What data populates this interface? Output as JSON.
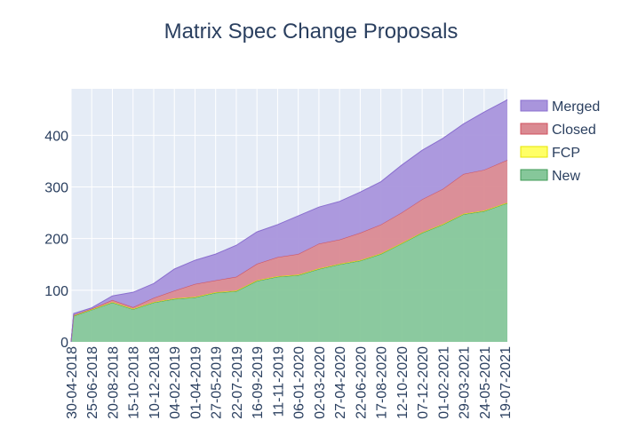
{
  "chart_data": {
    "type": "area",
    "stacked": true,
    "title": "Matrix Spec Change Proposals",
    "xlabel": "",
    "ylabel": "",
    "x": [
      "30-04-2018",
      "07-05-2018",
      "25-06-2018",
      "20-08-2018",
      "15-10-2018",
      "10-12-2018",
      "04-02-2019",
      "01-04-2019",
      "27-05-2019",
      "22-07-2019",
      "16-09-2019",
      "11-11-2019",
      "06-01-2020",
      "02-03-2020",
      "27-04-2020",
      "22-06-2020",
      "17-08-2020",
      "12-10-2020",
      "07-12-2020",
      "01-02-2021",
      "29-03-2021",
      "24-05-2021",
      "19-07-2021",
      "26-07-2021"
    ],
    "series": [
      {
        "name": "New",
        "fill": "#86c79a",
        "line": "#3f9a55",
        "values": [
          0,
          50,
          62,
          76,
          63,
          76,
          83,
          86,
          95,
          98,
          118,
          126,
          129,
          141,
          150,
          157,
          170,
          190,
          211,
          227,
          247,
          253,
          267,
          268
        ]
      },
      {
        "name": "FCP",
        "fill": "#ffff66",
        "line": "#e6e600",
        "values": [
          0,
          1,
          1,
          1,
          1,
          1,
          1,
          1,
          1,
          1,
          1,
          1,
          1,
          1,
          1,
          1,
          1,
          1,
          1,
          1,
          1,
          1,
          1,
          1
        ]
      },
      {
        "name": "Closed",
        "fill": "#da8a92",
        "line": "#d0505e",
        "values": [
          0,
          1,
          1,
          4,
          3,
          8,
          15,
          25,
          23,
          27,
          32,
          37,
          40,
          48,
          47,
          53,
          56,
          59,
          64,
          68,
          77,
          79,
          82,
          83
        ]
      },
      {
        "name": "Merged",
        "fill": "#a995dc",
        "line": "#8a6fcf",
        "values": [
          0,
          3,
          2,
          8,
          29,
          28,
          42,
          46,
          51,
          61,
          62,
          63,
          74,
          71,
          74,
          79,
          83,
          92,
          95,
          98,
          97,
          112,
          116,
          117
        ]
      }
    ],
    "legend_order": [
      "Merged",
      "Closed",
      "FCP",
      "New"
    ],
    "legend_position": "right",
    "xlim": [
      "30-04-2018",
      "26-07-2021"
    ],
    "ylim": [
      0,
      490
    ],
    "yticks": [
      0,
      100,
      200,
      300,
      400
    ],
    "xticks": [
      "30-04-2018",
      "25-06-2018",
      "20-08-2018",
      "15-10-2018",
      "10-12-2018",
      "04-02-2019",
      "01-04-2019",
      "27-05-2019",
      "22-07-2019",
      "16-09-2019",
      "11-11-2019",
      "06-01-2020",
      "02-03-2020",
      "27-04-2020",
      "22-06-2020",
      "17-08-2020",
      "12-10-2020",
      "07-12-2020",
      "01-02-2021",
      "29-03-2021",
      "24-05-2021",
      "19-07-2021"
    ],
    "grid": true,
    "plot_background": "#e5ecf6"
  }
}
